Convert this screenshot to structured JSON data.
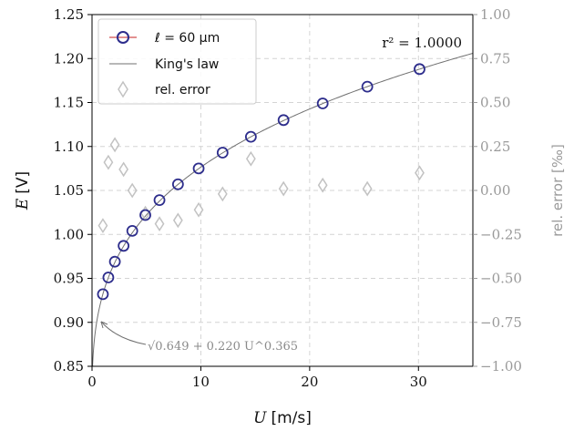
{
  "chart_data": {
    "type": "scatter",
    "xlabel_symbol": "U",
    "xlabel_unit": "[m/s]",
    "ylabel_symbol": "E",
    "ylabel_unit": "[V]",
    "y2label": "rel. error [‰]",
    "xlim": [
      0,
      35
    ],
    "ylim": [
      0.85,
      1.25
    ],
    "y2lim": [
      -1.0,
      1.0
    ],
    "x_ticks": [
      0,
      10,
      20,
      30
    ],
    "y_ticks": [
      0.85,
      0.9,
      0.95,
      1.0,
      1.05,
      1.1,
      1.15,
      1.2,
      1.25
    ],
    "y2_ticks": [
      -1.0,
      -0.75,
      -0.5,
      -0.25,
      0.0,
      0.25,
      0.5,
      0.75,
      1.0
    ],
    "x_tick_labels": [
      "0",
      "10",
      "20",
      "30"
    ],
    "y_tick_labels": [
      "0.85",
      "0.90",
      "0.95",
      "1.00",
      "1.05",
      "1.10",
      "1.15",
      "1.20",
      "1.25"
    ],
    "y2_tick_labels": [
      "−1.00",
      "−0.75",
      "−0.50",
      "−0.25",
      "0.00",
      "0.25",
      "0.50",
      "0.75",
      "1.00"
    ],
    "grid": true,
    "legend_position": "top-left",
    "annotation_r2": "r² = 1.0000",
    "annotation_fit": "√0.649 + 0.220 U^0.365",
    "colors": {
      "measurement_edge": "#2d2d8c",
      "measurement_line": "#d96b6b",
      "fit_line": "#707070",
      "error_marker": "#c2c2c2",
      "right_axis": "#9a9a9a"
    },
    "series": [
      {
        "name": "ℓ = 60 μm",
        "kind": "measurement",
        "x": [
          1.0,
          1.5,
          2.1,
          2.9,
          3.7,
          4.9,
          6.2,
          7.9,
          9.8,
          12.0,
          14.6,
          17.6,
          21.2,
          25.3,
          30.1
        ],
        "y": [
          0.932,
          0.951,
          0.969,
          0.987,
          1.004,
          1.022,
          1.039,
          1.057,
          1.075,
          1.093,
          1.111,
          1.13,
          1.149,
          1.168,
          1.188
        ]
      },
      {
        "name": "King's law",
        "kind": "fit",
        "a": 0.649,
        "b": 0.22,
        "n": 0.365
      },
      {
        "name": "rel. error",
        "kind": "error",
        "axis": "right",
        "x": [
          1.0,
          1.5,
          2.1,
          2.9,
          3.7,
          4.9,
          6.2,
          7.9,
          9.8,
          12.0,
          14.6,
          17.6,
          21.2,
          25.3,
          30.1
        ],
        "y": [
          -0.2,
          0.16,
          0.26,
          0.12,
          0.0,
          -0.13,
          -0.19,
          -0.17,
          -0.11,
          -0.02,
          0.18,
          0.01,
          0.03,
          0.01,
          0.1
        ]
      }
    ]
  }
}
